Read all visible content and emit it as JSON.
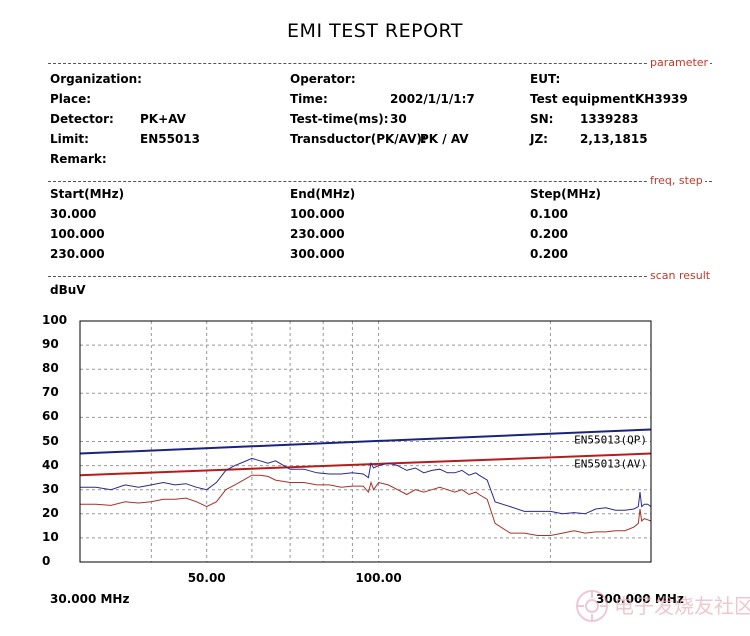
{
  "report": {
    "title": "EMI TEST REPORT"
  },
  "sections": {
    "parameter": "parameter",
    "freq_step": "freq, step",
    "scan_result": "scan result"
  },
  "params": {
    "organization_label": "Organization:",
    "organization_value": "",
    "place_label": "Place:",
    "place_value": "",
    "detector_label": "Detector:",
    "detector_value": "PK+AV",
    "limit_label": "Limit:",
    "limit_value": "EN55013",
    "remark_label": "Remark:",
    "remark_value": "",
    "operator_label": "Operator:",
    "operator_value": "",
    "time_label": "Time:",
    "time_value": "2002/1/1/1:7",
    "test_time_label": "Test-time(ms):",
    "test_time_value": "30",
    "transductor_label": "Transductor(PK/AV):",
    "transductor_value": "PK  /  AV",
    "eut_label": "EUT:",
    "eut_value": "",
    "test_equipment_label": "Test equipment:",
    "test_equipment_value": "KH3939",
    "sn_label": "SN:",
    "sn_value": "1339283",
    "jz_label": "JZ:",
    "jz_value": "2,13,1815"
  },
  "freq_table": {
    "headers": [
      "Start(MHz)",
      "End(MHz)",
      "Step(MHz)"
    ],
    "rows": [
      [
        "30.000",
        "100.000",
        "0.100"
      ],
      [
        "100.000",
        "230.000",
        "0.200"
      ],
      [
        "230.000",
        "300.000",
        "0.200"
      ]
    ]
  },
  "watermark": {
    "text": "电子发烧友社区"
  },
  "chart_data": {
    "type": "line",
    "ylabel": "dBuV",
    "ylim": [
      0,
      100
    ],
    "yticks": [
      "0",
      "10",
      "20",
      "30",
      "40",
      "50",
      "60",
      "70",
      "80",
      "90",
      "100"
    ],
    "xlim": [
      30,
      300
    ],
    "xscale": "log",
    "x_tick_labels": [
      {
        "x": 50,
        "label": "50.00"
      },
      {
        "x": 100,
        "label": "100.00"
      }
    ],
    "x_start_label": "30.000 MHz",
    "x_end_label": "300.000 MHz",
    "grid": true,
    "vgrid": [
      40,
      50,
      60,
      70,
      80,
      90,
      100,
      200
    ],
    "limit_lines": [
      {
        "name": "EN55013(QP)",
        "color": "#1a237e",
        "x": [
          30,
          300
        ],
        "y": [
          45,
          55
        ]
      },
      {
        "name": "EN55013(AV)",
        "color": "#b71c1c",
        "x": [
          30,
          300
        ],
        "y": [
          36,
          45
        ]
      }
    ],
    "series": [
      {
        "color": "#2a2a8a",
        "x": [
          30,
          32,
          34,
          36,
          38,
          40,
          42,
          44,
          46,
          48,
          50,
          52,
          54,
          56,
          58,
          60,
          62,
          64,
          66,
          70,
          74,
          78,
          82,
          86,
          90,
          94,
          96,
          97,
          98,
          100,
          104,
          108,
          112,
          116,
          120,
          124,
          128,
          132,
          136,
          140,
          144,
          148,
          150,
          155,
          160,
          170,
          180,
          190,
          200,
          210,
          220,
          230,
          240,
          250,
          260,
          270,
          280,
          285,
          287,
          289,
          292,
          296,
          300
        ],
        "y": [
          31,
          31,
          30,
          32,
          31,
          32,
          33,
          32,
          32.5,
          31,
          30,
          33,
          38,
          40,
          41.5,
          43,
          42,
          41,
          42,
          38.5,
          38.5,
          37,
          36.5,
          36.5,
          37,
          36.5,
          35,
          41,
          39,
          40,
          41,
          40,
          38,
          39,
          37,
          38,
          38.5,
          37,
          37,
          38,
          36,
          37,
          36,
          34,
          25,
          23,
          21,
          21,
          21,
          20,
          20.5,
          20,
          22,
          22.5,
          21.5,
          21.5,
          22,
          23,
          29,
          23,
          24,
          24,
          23
        ]
      },
      {
        "color": "#a93226",
        "x": [
          30,
          32,
          34,
          36,
          38,
          40,
          42,
          44,
          46,
          48,
          50,
          52,
          54,
          56,
          58,
          60,
          62,
          64,
          66,
          70,
          74,
          78,
          82,
          86,
          90,
          94,
          96,
          97,
          98,
          100,
          104,
          108,
          112,
          116,
          120,
          124,
          128,
          132,
          136,
          140,
          144,
          148,
          150,
          155,
          160,
          170,
          180,
          190,
          200,
          210,
          220,
          230,
          240,
          250,
          260,
          270,
          280,
          285,
          287,
          289,
          292,
          296,
          300
        ],
        "y": [
          24,
          24,
          23.5,
          25,
          24.5,
          25,
          26,
          26,
          26.5,
          25,
          23,
          25,
          30,
          32,
          34,
          36,
          36,
          35.5,
          34,
          33,
          33,
          32,
          32,
          31,
          31.5,
          31.5,
          29,
          33,
          30,
          33,
          32,
          30,
          28,
          30,
          29,
          30,
          31,
          30,
          29,
          30,
          28,
          29,
          28,
          26,
          16,
          12,
          12,
          11,
          11,
          12,
          13,
          12,
          12.5,
          12.5,
          13,
          13,
          14.5,
          16,
          22,
          17,
          18,
          17.5,
          17
        ]
      }
    ]
  }
}
